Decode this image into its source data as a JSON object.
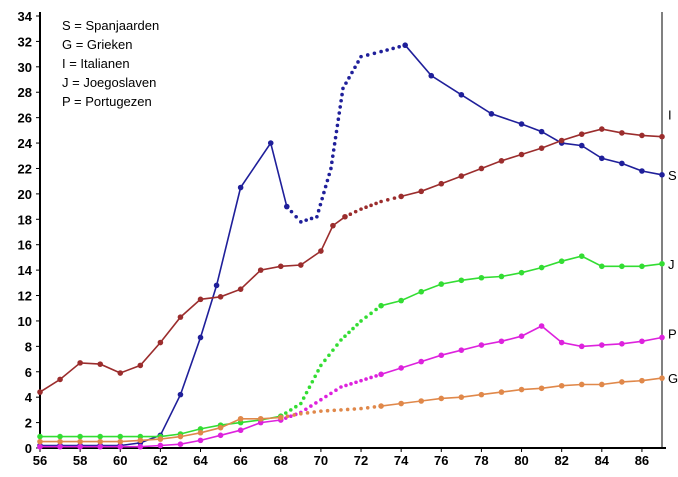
{
  "chart_data": {
    "type": "line",
    "title": "",
    "xlabel": "",
    "ylabel": "",
    "xlim": [
      56,
      87
    ],
    "ylim": [
      0,
      34
    ],
    "x_ticks": [
      "56",
      "58",
      "60",
      "62",
      "64",
      "66",
      "68",
      "70",
      "72",
      "74",
      "76",
      "78",
      "80",
      "82",
      "84",
      "86"
    ],
    "y_ticks": [
      "0",
      "2",
      "4",
      "6",
      "8",
      "10",
      "12",
      "14",
      "16",
      "18",
      "20",
      "22",
      "24",
      "26",
      "28",
      "30",
      "32",
      "34"
    ],
    "legend": {
      "placement": "top-left",
      "entries": [
        "S = Spanjaarden",
        "G = Grieken",
        "I = Italianen",
        "J = Joegoslaven",
        "P = Portugezen"
      ]
    },
    "series": [
      {
        "name": "S",
        "color": "#1f1f9a",
        "solid": [
          [
            56,
            0.2
          ],
          [
            57,
            0.2
          ],
          [
            58,
            0.2
          ],
          [
            59,
            0.2
          ],
          [
            60,
            0.2
          ],
          [
            61,
            0.4
          ],
          [
            62,
            1.0
          ],
          [
            63,
            4.2
          ],
          [
            64,
            8.7
          ],
          [
            64.8,
            12.8
          ],
          [
            66,
            20.5
          ],
          [
            67.5,
            24.0
          ],
          [
            68.3,
            19.0
          ]
        ],
        "dotted": [
          [
            68.3,
            19.0
          ],
          [
            69,
            17.8
          ],
          [
            69.8,
            18.2
          ],
          [
            70.5,
            22
          ],
          [
            71.1,
            28.3
          ],
          [
            72,
            30.8
          ],
          [
            73,
            31.2
          ],
          [
            74.2,
            31.7
          ]
        ],
        "solid2": [
          [
            74.2,
            31.7
          ],
          [
            75.5,
            29.3
          ],
          [
            77,
            27.8
          ],
          [
            78.5,
            26.3
          ],
          [
            80,
            25.5
          ],
          [
            81,
            24.9
          ],
          [
            82,
            24.0
          ],
          [
            83,
            23.8
          ],
          [
            84,
            22.8
          ],
          [
            85,
            22.4
          ],
          [
            86,
            21.8
          ],
          [
            87,
            21.5
          ]
        ]
      },
      {
        "name": "I",
        "color": "#9b2d2d",
        "solid": [
          [
            56,
            4.4
          ],
          [
            57,
            5.4
          ],
          [
            58,
            6.7
          ],
          [
            59,
            6.6
          ],
          [
            60,
            5.9
          ],
          [
            61,
            6.5
          ],
          [
            62,
            8.3
          ],
          [
            63,
            10.3
          ],
          [
            64,
            11.7
          ],
          [
            65,
            11.9
          ],
          [
            66,
            12.5
          ],
          [
            67,
            14.0
          ],
          [
            68,
            14.3
          ],
          [
            69,
            14.4
          ],
          [
            70,
            15.5
          ],
          [
            70.6,
            17.5
          ],
          [
            71.2,
            18.2
          ]
        ],
        "dotted": [
          [
            71.2,
            18.2
          ],
          [
            72,
            18.8
          ],
          [
            73,
            19.4
          ],
          [
            74,
            19.8
          ]
        ],
        "solid2": [
          [
            74,
            19.8
          ],
          [
            75,
            20.2
          ],
          [
            76,
            20.8
          ],
          [
            77,
            21.4
          ],
          [
            78,
            22.0
          ],
          [
            79,
            22.6
          ],
          [
            80,
            23.1
          ],
          [
            81,
            23.6
          ],
          [
            82,
            24.2
          ],
          [
            83,
            24.7
          ],
          [
            84,
            25.1
          ],
          [
            85,
            24.8
          ],
          [
            86,
            24.6
          ],
          [
            87,
            24.5
          ]
        ]
      },
      {
        "name": "J",
        "color": "#33dd33",
        "solid": [
          [
            56,
            0.9
          ],
          [
            57,
            0.9
          ],
          [
            58,
            0.9
          ],
          [
            59,
            0.9
          ],
          [
            60,
            0.9
          ],
          [
            61,
            0.9
          ],
          [
            62,
            0.9
          ],
          [
            63,
            1.1
          ],
          [
            64,
            1.5
          ],
          [
            65,
            1.8
          ],
          [
            66,
            2.0
          ],
          [
            67,
            2.2
          ],
          [
            68,
            2.5
          ]
        ],
        "dotted": [
          [
            68,
            2.5
          ],
          [
            69,
            3.5
          ],
          [
            70,
            6.5
          ],
          [
            71,
            8.5
          ],
          [
            72,
            10.0
          ],
          [
            73,
            11.2
          ]
        ],
        "solid2": [
          [
            73,
            11.2
          ],
          [
            74,
            11.6
          ],
          [
            75,
            12.3
          ],
          [
            76,
            12.9
          ],
          [
            77,
            13.2
          ],
          [
            78,
            13.4
          ],
          [
            79,
            13.5
          ],
          [
            80,
            13.8
          ],
          [
            81,
            14.2
          ],
          [
            82,
            14.7
          ],
          [
            83,
            15.1
          ],
          [
            84,
            14.3
          ],
          [
            85,
            14.3
          ],
          [
            86,
            14.3
          ],
          [
            87,
            14.5
          ]
        ]
      },
      {
        "name": "P",
        "color": "#dd22dd",
        "solid": [
          [
            56,
            0.1
          ],
          [
            57,
            0.1
          ],
          [
            58,
            0.1
          ],
          [
            59,
            0.1
          ],
          [
            60,
            0.1
          ],
          [
            61,
            0.1
          ],
          [
            62,
            0.2
          ],
          [
            63,
            0.3
          ],
          [
            64,
            0.6
          ],
          [
            65,
            1.0
          ],
          [
            66,
            1.4
          ],
          [
            67,
            2.0
          ],
          [
            68,
            2.2
          ]
        ],
        "dotted": [
          [
            68,
            2.2
          ],
          [
            69,
            2.8
          ],
          [
            70,
            3.8
          ],
          [
            71,
            4.8
          ],
          [
            72,
            5.3
          ],
          [
            73,
            5.8
          ]
        ],
        "solid2": [
          [
            73,
            5.8
          ],
          [
            74,
            6.3
          ],
          [
            75,
            6.8
          ],
          [
            76,
            7.3
          ],
          [
            77,
            7.7
          ],
          [
            78,
            8.1
          ],
          [
            79,
            8.4
          ],
          [
            80,
            8.8
          ],
          [
            81,
            9.6
          ],
          [
            82,
            8.3
          ],
          [
            83,
            8.0
          ],
          [
            84,
            8.1
          ],
          [
            85,
            8.2
          ],
          [
            86,
            8.4
          ],
          [
            87,
            8.7
          ]
        ]
      },
      {
        "name": "G",
        "color": "#e0884a",
        "solid": [
          [
            56,
            0.5
          ],
          [
            57,
            0.5
          ],
          [
            58,
            0.5
          ],
          [
            59,
            0.5
          ],
          [
            60,
            0.5
          ],
          [
            61,
            0.6
          ],
          [
            62,
            0.7
          ],
          [
            63,
            0.9
          ],
          [
            64,
            1.2
          ],
          [
            65,
            1.6
          ],
          [
            66,
            2.3
          ],
          [
            67,
            2.3
          ],
          [
            68,
            2.4
          ]
        ],
        "dotted": [
          [
            68,
            2.4
          ],
          [
            69,
            2.7
          ],
          [
            70,
            2.9
          ],
          [
            71,
            3.0
          ],
          [
            72,
            3.1
          ],
          [
            73,
            3.3
          ]
        ],
        "solid2": [
          [
            73,
            3.3
          ],
          [
            74,
            3.5
          ],
          [
            75,
            3.7
          ],
          [
            76,
            3.9
          ],
          [
            77,
            4.0
          ],
          [
            78,
            4.2
          ],
          [
            79,
            4.4
          ],
          [
            80,
            4.6
          ],
          [
            81,
            4.7
          ],
          [
            82,
            4.9
          ],
          [
            83,
            5.0
          ],
          [
            84,
            5.0
          ],
          [
            85,
            5.2
          ],
          [
            86,
            5.3
          ],
          [
            87,
            5.5
          ]
        ]
      }
    ]
  }
}
